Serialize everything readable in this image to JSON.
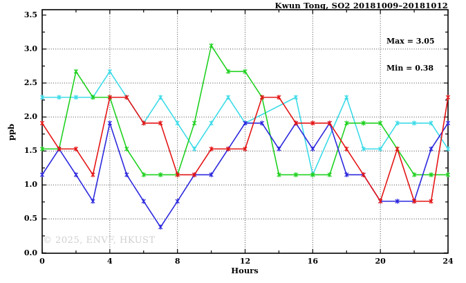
{
  "header": {
    "title": "Kwun Tong, SO2 20181009–20181012"
  },
  "annotations": {
    "max_label": "Max = 3.05",
    "min_label": "Min = 0.38"
  },
  "watermark": "© 2025, ENVF, HKUST",
  "axis": {
    "x_label": "Hours",
    "y_label": "ppb"
  },
  "chart_data": {
    "type": "line",
    "title": "Kwun Tong, SO2 20181009–20181012",
    "xlabel": "Hours",
    "ylabel": "ppb",
    "xlim": [
      0,
      24
    ],
    "ylim": [
      0,
      3.5
    ],
    "grid": {
      "on": true,
      "x_at": [
        4,
        8,
        12,
        16,
        20
      ],
      "y_at": [
        0.5,
        1.0,
        1.5,
        2.0,
        2.5,
        3.0
      ]
    },
    "x_major_ticks": [
      0,
      4,
      8,
      12,
      16,
      20,
      24
    ],
    "x_minor_ticks": [
      2,
      6,
      10,
      14,
      18,
      22
    ],
    "x_tick_labels": [
      "0",
      "4",
      "8",
      "12",
      "16",
      "20",
      "24"
    ],
    "y_major_ticks": [
      0.0,
      0.5,
      1.0,
      1.5,
      2.0,
      2.5,
      3.0,
      3.5
    ],
    "y_minor_ticks": [
      0.25,
      0.75,
      1.25,
      1.75,
      2.25,
      2.75,
      3.25
    ],
    "y_tick_labels": [
      "0.0",
      "0.5",
      "1.0",
      "1.5",
      "2.0",
      "2.5",
      "3.0",
      "3.5"
    ],
    "stats": {
      "max": 3.05,
      "min": 0.38
    },
    "marker": "asterisk",
    "legend": "none",
    "x": [
      0,
      1,
      2,
      3,
      4,
      5,
      6,
      7,
      8,
      9,
      10,
      11,
      12,
      13,
      14,
      15,
      16,
      17,
      18,
      19,
      20,
      21,
      22,
      23,
      24
    ],
    "series": [
      {
        "name": "series-cyan",
        "color": "#3cdbe8",
        "values": [
          2.29,
          2.29,
          2.29,
          2.29,
          2.67,
          2.29,
          1.91,
          2.29,
          1.91,
          1.53,
          1.91,
          2.29,
          1.91,
          null,
          null,
          2.29,
          1.15,
          null,
          2.29,
          1.53,
          1.53,
          1.91,
          1.91,
          1.91,
          1.53
        ]
      },
      {
        "name": "series-green",
        "color": "#1ed11e",
        "values": [
          1.53,
          1.53,
          2.67,
          2.29,
          2.29,
          1.53,
          1.15,
          1.15,
          1.15,
          1.91,
          3.05,
          2.67,
          2.67,
          2.29,
          1.15,
          1.15,
          1.15,
          1.15,
          1.91,
          1.91,
          1.91,
          1.53,
          1.15,
          1.15,
          1.15
        ]
      },
      {
        "name": "series-blue",
        "color": "#2b27dd",
        "values": [
          1.15,
          1.53,
          1.15,
          0.76,
          1.91,
          1.15,
          0.76,
          0.38,
          0.76,
          1.15,
          1.15,
          1.53,
          1.91,
          1.91,
          1.53,
          1.91,
          1.53,
          1.91,
          1.15,
          1.15,
          0.76,
          0.76,
          0.76,
          1.53,
          1.91
        ]
      },
      {
        "name": "series-red",
        "color": "#e41414",
        "values": [
          1.91,
          1.53,
          1.53,
          1.15,
          2.29,
          2.29,
          1.91,
          1.91,
          1.15,
          1.15,
          1.53,
          1.53,
          1.53,
          2.29,
          2.29,
          1.91,
          1.91,
          1.91,
          1.53,
          1.15,
          0.76,
          1.53,
          0.76,
          0.76,
          2.29
        ]
      }
    ]
  },
  "style": {
    "axis_color": "#000000",
    "grid_color": "#454545",
    "background": "#ffffff"
  }
}
